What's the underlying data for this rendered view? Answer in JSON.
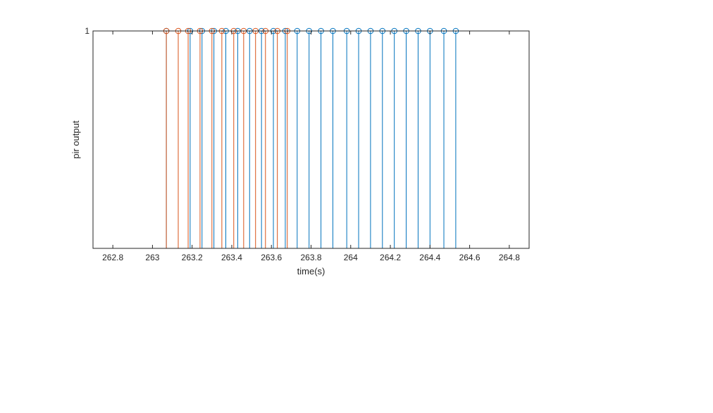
{
  "chart_data": {
    "type": "stem",
    "xlabel": "time(s)",
    "ylabel": "pir output",
    "xlim": [
      262.7,
      264.9
    ],
    "ylim": [
      0,
      1
    ],
    "x_ticks": [
      "262.8",
      "263",
      "263.2",
      "263.4",
      "263.6",
      "263.8",
      "264",
      "264.2",
      "264.4",
      "264.6",
      "264.8"
    ],
    "x_tick_values": [
      262.8,
      263.0,
      263.2,
      263.4,
      263.6,
      263.8,
      264.0,
      264.2,
      264.4,
      264.6,
      264.8
    ],
    "y_ticks": [
      "1"
    ],
    "y_tick_values": [
      1
    ],
    "grid": false,
    "box": true,
    "series": [
      {
        "color": "#0072BD",
        "x": [
          263.07,
          263.19,
          263.25,
          263.31,
          263.37,
          263.43,
          263.49,
          263.55,
          263.61,
          263.67,
          263.73,
          263.79,
          263.85,
          263.91,
          263.98,
          264.04,
          264.1,
          264.16,
          264.22,
          264.28,
          264.34,
          264.4,
          264.47,
          264.53
        ],
        "y": [
          1,
          1,
          1,
          1,
          1,
          1,
          1,
          1,
          1,
          1,
          1,
          1,
          1,
          1,
          1,
          1,
          1,
          1,
          1,
          1,
          1,
          1,
          1,
          1
        ]
      },
      {
        "color": "#D95319",
        "x": [
          263.07,
          263.13,
          263.18,
          263.24,
          263.3,
          263.35,
          263.41,
          263.46,
          263.52,
          263.57,
          263.63,
          263.68
        ],
        "y": [
          1,
          1,
          1,
          1,
          1,
          1,
          1,
          1,
          1,
          1,
          1,
          1
        ]
      }
    ]
  }
}
